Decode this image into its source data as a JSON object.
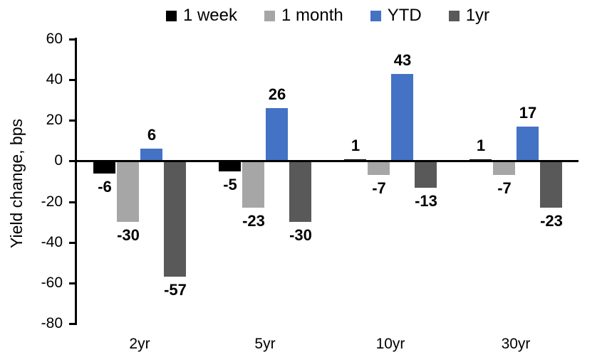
{
  "chart_data": {
    "type": "bar",
    "title": "",
    "categories": [
      "2yr",
      "5yr",
      "10yr",
      "30yr"
    ],
    "series": [
      {
        "name": "1 week",
        "color": "#000000",
        "values": [
          -6,
          -5,
          1,
          1
        ]
      },
      {
        "name": "1 month",
        "color": "#A6A6A6",
        "values": [
          -30,
          -23,
          -7,
          -7
        ]
      },
      {
        "name": "YTD",
        "color": "#4472C4",
        "values": [
          6,
          26,
          43,
          17
        ]
      },
      {
        "name": "1yr",
        "color": "#595959",
        "values": [
          -57,
          -30,
          -13,
          -23
        ]
      }
    ],
    "xlabel": "",
    "ylabel": "Yield change, bps",
    "ylim": [
      -80,
      60
    ],
    "ytick_step": 20,
    "yticks": [
      60,
      40,
      20,
      0,
      -20,
      -40,
      -60,
      -80
    ],
    "grid": false,
    "legend_position": "top",
    "data_labels": true,
    "axis_color": "#000000",
    "background_color": "#FFFFFF"
  }
}
